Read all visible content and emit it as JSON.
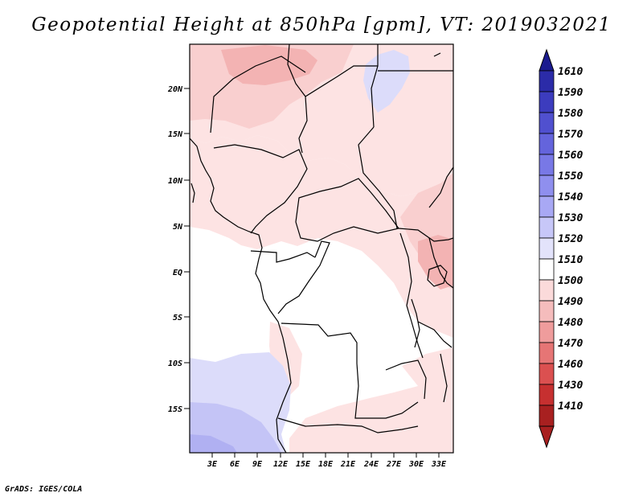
{
  "title": "Geopotential Height at 850hPa [gpm], VT: 2019032021",
  "footer": "GrADS: IGES/COLA",
  "map": {
    "variable": "Geopotential Height",
    "level": "850hPa",
    "units": "gpm",
    "valid_time": "2019032021",
    "lat_labels": [
      "20N",
      "15N",
      "10N",
      "5N",
      "EQ",
      "5S",
      "10S",
      "15S"
    ],
    "lon_labels": [
      "3E",
      "6E",
      "9E",
      "12E",
      "15E",
      "18E",
      "21E",
      "24E",
      "27E",
      "30E",
      "33E"
    ]
  },
  "colorbar": {
    "levels": [
      "1610",
      "1590",
      "1580",
      "1570",
      "1560",
      "1550",
      "1540",
      "1530",
      "1520",
      "1510",
      "1500",
      "1490",
      "1480",
      "1470",
      "1460",
      "1430",
      "1410"
    ],
    "colors": [
      "#1b1b8f",
      "#2b2ba8",
      "#3c3cbe",
      "#5050cf",
      "#6464dc",
      "#7878e6",
      "#8f8fee",
      "#a8a8f4",
      "#c7c7f8",
      "#e3e3fb",
      "#ffffff",
      "#fbdada",
      "#f5bcbc",
      "#ef9c9c",
      "#e67575",
      "#db5050",
      "#c63030",
      "#a82020"
    ],
    "top_color": "#1b1b8f",
    "bottom_color": "#a82020"
  },
  "field_colors": {
    "white": "#ffffff",
    "pale_pink": "#fde3e3",
    "pink": "#f9cfcf",
    "rose": "#f3b3b3",
    "pale_blue": "#dcdcfa",
    "light_blue": "#c4c4f6",
    "blue": "#b0b0f2"
  }
}
